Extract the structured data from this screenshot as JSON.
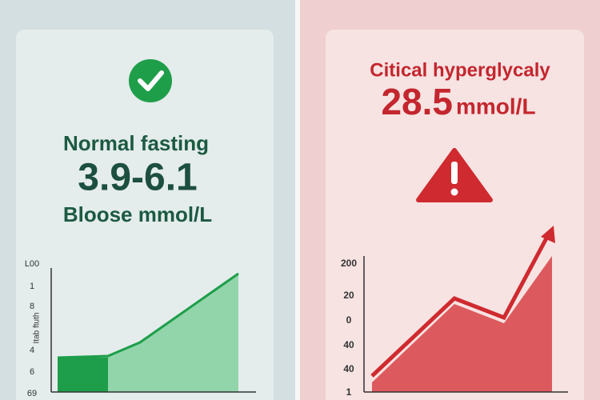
{
  "normal_panel": {
    "title": "Normal fasting",
    "range": "3.9-6.1",
    "unit": "Bloose mmol/L",
    "axis_labels": [
      "L00",
      "1",
      "8",
      "4",
      "6",
      "69"
    ],
    "axis_title": "Itab ftuth"
  },
  "critical_panel": {
    "title": "Citical hyperglycaly",
    "value": "28.5",
    "unit": "mmol/L",
    "axis_labels": [
      "200",
      "20",
      "0",
      "40",
      "40",
      "1"
    ]
  }
}
